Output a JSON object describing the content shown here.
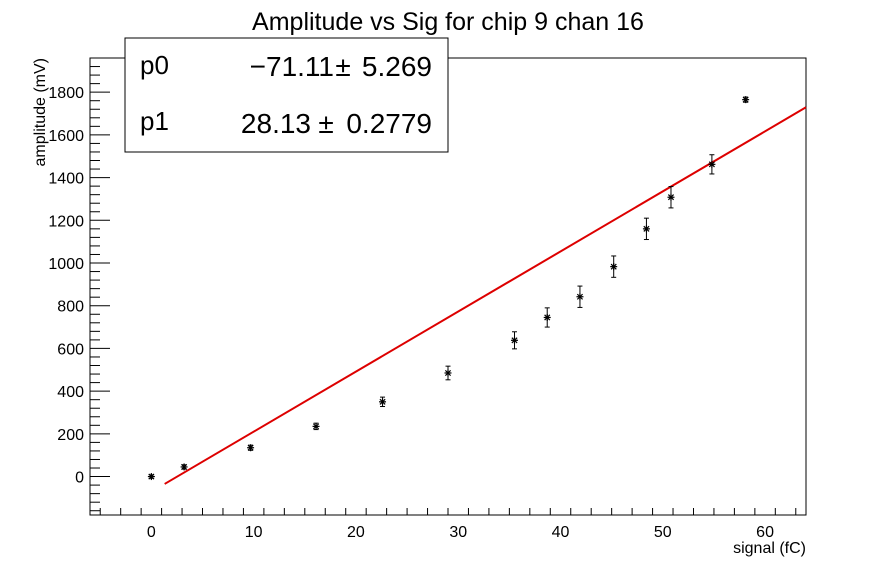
{
  "chart_data": {
    "type": "scatter",
    "title": "Amplitude vs Sig for chip 9 chan 16",
    "xlabel": "signal (fC)",
    "ylabel": "amplitude (mV)",
    "xlim": [
      -6,
      64
    ],
    "ylim": [
      -180,
      1960
    ],
    "x_ticks": [
      0,
      10,
      20,
      30,
      40,
      50,
      60
    ],
    "y_ticks": [
      0,
      200,
      400,
      600,
      800,
      1000,
      1200,
      1400,
      1600,
      1800
    ],
    "grid": false,
    "legend": "none",
    "points": [
      {
        "x": 0.0,
        "y": 0,
        "err": 8
      },
      {
        "x": 3.2,
        "y": 45,
        "err": 10
      },
      {
        "x": 9.7,
        "y": 135,
        "err": 12
      },
      {
        "x": 16.1,
        "y": 235,
        "err": 15
      },
      {
        "x": 22.6,
        "y": 350,
        "err": 22
      },
      {
        "x": 29.0,
        "y": 485,
        "err": 32
      },
      {
        "x": 35.5,
        "y": 638,
        "err": 40
      },
      {
        "x": 38.7,
        "y": 745,
        "err": 45
      },
      {
        "x": 41.9,
        "y": 842,
        "err": 50
      },
      {
        "x": 45.2,
        "y": 983,
        "err": 50
      },
      {
        "x": 48.4,
        "y": 1160,
        "err": 50
      },
      {
        "x": 50.8,
        "y": 1308,
        "err": 50
      },
      {
        "x": 54.8,
        "y": 1462,
        "err": 45
      },
      {
        "x": 58.1,
        "y": 1765,
        "err": 12
      }
    ],
    "fit": {
      "x_start": 1.3,
      "x_end": 64,
      "p0": -71.11,
      "p1": 28.13,
      "color": "#dd0000"
    },
    "stats": [
      {
        "name": "p0",
        "value": "−71.11",
        "pm": "±",
        "error": "5.269"
      },
      {
        "name": "p1",
        "value": "28.13",
        "pm": "±",
        "error": "0.2779"
      }
    ]
  }
}
